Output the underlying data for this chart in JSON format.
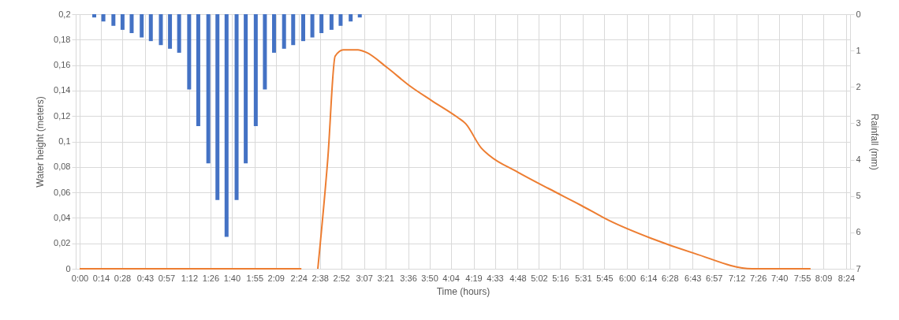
{
  "chart_data": {
    "type": "bar",
    "xlabel": "Time (hours)",
    "ylabel": "Water height (meters)",
    "y2label": "Rainfall (mm)",
    "xlim": [
      0,
      8.4
    ],
    "xticks": [
      {
        "value": 0,
        "label": "0:00"
      },
      {
        "value": 0.2333,
        "label": "0:14"
      },
      {
        "value": 0.4667,
        "label": "0:28"
      },
      {
        "value": 0.7167,
        "label": "0:43"
      },
      {
        "value": 0.95,
        "label": "0:57"
      },
      {
        "value": 1.2,
        "label": "1:12"
      },
      {
        "value": 1.4333,
        "label": "1:26"
      },
      {
        "value": 1.6667,
        "label": "1:40"
      },
      {
        "value": 1.9167,
        "label": "1:55"
      },
      {
        "value": 2.15,
        "label": "2:09"
      },
      {
        "value": 2.4,
        "label": "2:24"
      },
      {
        "value": 2.6333,
        "label": "2:38"
      },
      {
        "value": 2.8667,
        "label": "2:52"
      },
      {
        "value": 3.1167,
        "label": "3:07"
      },
      {
        "value": 3.35,
        "label": "3:21"
      },
      {
        "value": 3.6,
        "label": "3:36"
      },
      {
        "value": 3.8333,
        "label": "3:50"
      },
      {
        "value": 4.0667,
        "label": "4:04"
      },
      {
        "value": 4.3167,
        "label": "4:19"
      },
      {
        "value": 4.55,
        "label": "4:33"
      },
      {
        "value": 4.8,
        "label": "4:48"
      },
      {
        "value": 5.0333,
        "label": "5:02"
      },
      {
        "value": 5.2667,
        "label": "5:16"
      },
      {
        "value": 5.5167,
        "label": "5:31"
      },
      {
        "value": 5.75,
        "label": "5:45"
      },
      {
        "value": 6,
        "label": "6:00"
      },
      {
        "value": 6.2333,
        "label": "6:14"
      },
      {
        "value": 6.4667,
        "label": "6:28"
      },
      {
        "value": 6.7167,
        "label": "6:43"
      },
      {
        "value": 6.95,
        "label": "6:57"
      },
      {
        "value": 7.2,
        "label": "7:12"
      },
      {
        "value": 7.4333,
        "label": "7:26"
      },
      {
        "value": 7.6667,
        "label": "7:40"
      },
      {
        "value": 7.9167,
        "label": "7:55"
      },
      {
        "value": 8.15,
        "label": "8:09"
      },
      {
        "value": 8.4,
        "label": "8:24"
      }
    ],
    "ylim": [
      0,
      0.2
    ],
    "yticks": [
      {
        "value": 0,
        "label": "0"
      },
      {
        "value": 0.02,
        "label": "0,02"
      },
      {
        "value": 0.04,
        "label": "0,04"
      },
      {
        "value": 0.06,
        "label": "0,06"
      },
      {
        "value": 0.08,
        "label": "0,08"
      },
      {
        "value": 0.1,
        "label": "0,1"
      },
      {
        "value": 0.12,
        "label": "0,12"
      },
      {
        "value": 0.14,
        "label": "0,14"
      },
      {
        "value": 0.16,
        "label": "0,16"
      },
      {
        "value": 0.18,
        "label": "0,18"
      },
      {
        "value": 0.2,
        "label": "0,2"
      }
    ],
    "y2lim": [
      7,
      0
    ],
    "y2ticks": [
      0,
      1,
      2,
      3,
      4,
      5,
      6,
      7
    ],
    "grid": true,
    "series": [
      {
        "axis": "y2",
        "color": "#4472c4",
        "x": [
          0.16,
          0.26,
          0.37,
          0.47,
          0.57,
          0.68,
          0.78,
          0.89,
          0.99,
          1.09,
          1.2,
          1.3,
          1.41,
          1.51,
          1.61,
          1.72,
          1.82,
          1.93,
          2.03,
          2.13,
          2.24,
          2.34,
          2.45,
          2.55,
          2.65,
          2.76,
          2.86,
          2.97,
          3.07
        ],
        "values": [
          0.09,
          0.2,
          0.32,
          0.43,
          0.52,
          0.64,
          0.74,
          0.85,
          0.95,
          1.06,
          2.07,
          3.08,
          4.1,
          5.11,
          6.12,
          5.11,
          4.1,
          3.08,
          2.07,
          1.06,
          0.95,
          0.85,
          0.74,
          0.64,
          0.52,
          0.43,
          0.32,
          0.2,
          0.09
        ]
      },
      {
        "type": "line",
        "color": "#ed7d31",
        "x": [
          0,
          2.43,
          2.52,
          2.61,
          2.72,
          2.8,
          2.89,
          3.05,
          3.14,
          3.37,
          3.63,
          3.86,
          4.14,
          4.23,
          4.4,
          4.49,
          4.8,
          5.14,
          5.49,
          5.8,
          6.26,
          6.74,
          7.37,
          8.01
        ],
        "values": [
          0,
          0,
          null,
          0,
          0.087,
          0.167,
          0.172,
          0.172,
          0.17,
          0.158,
          0.143,
          0.132,
          0.119,
          0.114,
          0.095,
          0.089,
          0.076,
          0.063,
          0.05,
          0.038,
          0.024,
          0.012,
          0,
          0
        ]
      }
    ]
  }
}
